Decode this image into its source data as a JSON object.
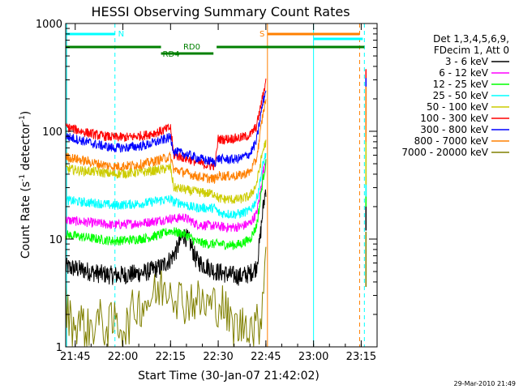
{
  "chart_data": {
    "type": "line",
    "title": "HESSI Observing Summary Count Rates",
    "xlabel": "Start Time (30-Jan-07 21:42:02)",
    "ylabel_main": "Count Rate (s",
    "ylabel_sup1": "-1",
    "ylabel_mid": " detector",
    "ylabel_sup2": "-1",
    "ylabel_end": ")",
    "yscale": "log",
    "ylim": [
      1,
      1000
    ],
    "xlim_min": [
      0,
      98
    ],
    "x_unit": "minutes after 21:42:02",
    "x_ticks": [
      {
        "label": "21:45",
        "min": 3
      },
      {
        "label": "22:00",
        "min": 18
      },
      {
        "label": "22:15",
        "min": 33
      },
      {
        "label": "22:30",
        "min": 48
      },
      {
        "label": "22:45",
        "min": 63
      },
      {
        "label": "23:00",
        "min": 78
      },
      {
        "label": "23:15",
        "min": 93
      }
    ],
    "y_ticks": [
      {
        "label": "1",
        "value": 1
      },
      {
        "label": "10",
        "value": 10
      },
      {
        "label": "100",
        "value": 100
      },
      {
        "label": "1000",
        "value": 1000
      }
    ],
    "legend_title": [
      "Det 1,3,4,5,6,9,",
      "FDecim 1, Att 0"
    ],
    "legend_position": "right",
    "series": [
      {
        "name": "3 - 6 keV",
        "color": "#000000",
        "x": [
          0,
          5,
          10,
          15,
          20,
          25,
          30,
          33,
          35,
          37,
          39,
          41,
          43,
          45,
          47,
          49,
          51,
          53,
          55,
          58,
          60,
          61,
          62,
          63
        ],
        "values": [
          5.5,
          5.2,
          4.8,
          4.6,
          4.7,
          4.9,
          5.5,
          6.5,
          8,
          11,
          9.5,
          6.5,
          5.8,
          5.5,
          5,
          4.9,
          4.7,
          4.6,
          4.5,
          4.8,
          5.5,
          9,
          18,
          30
        ]
      },
      {
        "name": "6 - 12 keV",
        "color": "#ff00ff",
        "x": [
          0,
          5,
          10,
          15,
          20,
          25,
          30,
          33,
          35,
          37,
          39,
          41,
          43,
          45,
          47,
          49,
          51,
          53,
          55,
          58,
          60,
          61,
          62,
          63
        ],
        "values": [
          15,
          14.5,
          14,
          13.5,
          13.8,
          14.2,
          15,
          15.5,
          15.5,
          16,
          15,
          13.8,
          13.5,
          13.4,
          13.2,
          13,
          12.8,
          12.9,
          13,
          14,
          17,
          24,
          40,
          55
        ]
      },
      {
        "name": "12 - 25 keV",
        "color": "#00ff00",
        "x": [
          0,
          5,
          10,
          15,
          20,
          25,
          30,
          33,
          35,
          37,
          39,
          41,
          43,
          45,
          47,
          49,
          51,
          53,
          55,
          58,
          60,
          61,
          62,
          63
        ],
        "values": [
          11,
          10.5,
          10,
          9.6,
          9.8,
          10.2,
          11,
          12,
          11.5,
          11.2,
          10.5,
          9.5,
          9.2,
          9,
          9,
          9,
          8.8,
          8.8,
          9,
          10,
          13,
          20,
          35,
          50
        ]
      },
      {
        "name": "25 - 50 keV",
        "color": "#00ffff",
        "x": [
          0,
          5,
          10,
          15,
          20,
          25,
          30,
          33,
          34,
          37,
          39,
          41,
          43,
          45,
          47,
          48,
          49,
          51,
          53,
          55,
          58,
          60,
          61,
          62,
          63
        ],
        "values": [
          23,
          22,
          21.5,
          20.5,
          21,
          21.5,
          23,
          23.5,
          22,
          21.5,
          20,
          19.5,
          19.5,
          19.3,
          19.5,
          17.5,
          17.3,
          17.2,
          17,
          17.2,
          18.5,
          23,
          32,
          48,
          62
        ]
      },
      {
        "name": "50 - 100 keV",
        "color": "#cccc00",
        "x": [
          0,
          5,
          10,
          15,
          20,
          25,
          30,
          33,
          34,
          37,
          39,
          41,
          43,
          45,
          47,
          48,
          49,
          51,
          53,
          55,
          58,
          60,
          61,
          62,
          63
        ],
        "values": [
          45,
          43,
          42,
          40,
          41,
          42,
          44,
          46,
          30,
          29,
          28,
          27.5,
          27,
          26.5,
          26.5,
          24,
          23.5,
          23.5,
          23.2,
          23.5,
          25,
          32,
          45,
          65,
          80
        ]
      },
      {
        "name": "100 - 300 keV",
        "color": "#ff0000",
        "x": [
          0,
          5,
          10,
          15,
          20,
          25,
          30,
          33,
          34,
          37,
          39,
          41,
          43,
          45,
          47,
          48,
          49,
          51,
          53,
          55,
          58,
          60,
          61,
          62,
          63
        ],
        "values": [
          110,
          100,
          92,
          88,
          88,
          92,
          100,
          108,
          60,
          57,
          55,
          52,
          50,
          48,
          48,
          85,
          84,
          85,
          86,
          87,
          92,
          110,
          150,
          210,
          290
        ]
      },
      {
        "name": "300 - 800 keV",
        "color": "#0000ff",
        "x": [
          0,
          5,
          10,
          15,
          20,
          25,
          30,
          33,
          34,
          37,
          39,
          41,
          43,
          45,
          47,
          48,
          49,
          51,
          53,
          55,
          58,
          60,
          61,
          62,
          63
        ],
        "values": [
          90,
          82,
          75,
          70,
          71,
          74,
          82,
          88,
          65,
          62,
          60,
          57,
          55,
          53,
          52,
          56,
          55,
          55,
          55,
          56,
          62,
          80,
          120,
          180,
          240
        ]
      },
      {
        "name": "800 - 7000 keV",
        "color": "#ff8000",
        "x": [
          0,
          5,
          10,
          15,
          20,
          25,
          30,
          33,
          34,
          37,
          39,
          41,
          43,
          45,
          47,
          48,
          49,
          51,
          53,
          55,
          58,
          60,
          61,
          62,
          63
        ],
        "values": [
          58,
          54,
          50,
          47,
          48,
          50,
          55,
          58,
          44,
          42,
          40,
          38.5,
          37.5,
          36.5,
          36,
          39,
          38.5,
          38.5,
          38.5,
          39,
          42,
          55,
          85,
          140,
          200
        ]
      },
      {
        "name": "7000 - 20000 keV",
        "color": "#808000",
        "x": [
          0,
          2,
          4,
          7,
          10,
          13,
          16,
          19,
          22,
          25,
          28,
          30,
          33,
          35,
          37,
          40,
          43,
          46,
          49,
          52,
          55,
          57,
          59,
          61,
          62,
          63
        ],
        "values": [
          2.6,
          1.5,
          1.8,
          1.4,
          1.8,
          1.5,
          1.7,
          1.5,
          2.4,
          2.6,
          3,
          3.5,
          3.8,
          3,
          2.6,
          2.8,
          2.5,
          2.4,
          2.6,
          1.6,
          1.5,
          1.8,
          1.5,
          1.6,
          3,
          9
        ]
      }
    ],
    "bars": [
      {
        "label": "N",
        "color": "#00ffff",
        "ranges": [
          [
            0,
            15.5
          ]
        ],
        "level": 1,
        "label_min": 16.5
      },
      {
        "label": "S",
        "color": "#ff8000",
        "ranges": [
          [
            63.5,
            92.5
          ]
        ],
        "level": 1,
        "label_min": 61
      },
      {
        "label": "",
        "color": "#00ffff",
        "ranges": [
          [
            78,
            93.5
          ]
        ],
        "level": 1.4
      },
      {
        "label": "RD0",
        "color": "#008000",
        "ranges": [
          [
            0,
            30
          ],
          [
            47.5,
            94
          ]
        ],
        "level": 2,
        "label_min": 37
      },
      {
        "label": "RD4",
        "color": "#008000",
        "ranges": [
          [
            30,
            46.5
          ]
        ],
        "level": 3,
        "label_min": 30.5
      }
    ],
    "vlines": [
      {
        "min": 0.3,
        "color": "#00ffff",
        "dash": false
      },
      {
        "min": 15.5,
        "color": "#00ffff",
        "dash": true
      },
      {
        "min": 63.5,
        "color": "#ff8000",
        "dash": false
      },
      {
        "min": 78,
        "color": "#00ffff",
        "dash": false
      },
      {
        "min": 92.5,
        "color": "#ff8000",
        "dash": true
      },
      {
        "min": 94,
        "color": "#00ffff",
        "dash": true
      }
    ],
    "timestamp": "29-Mar-2010 21:49"
  }
}
